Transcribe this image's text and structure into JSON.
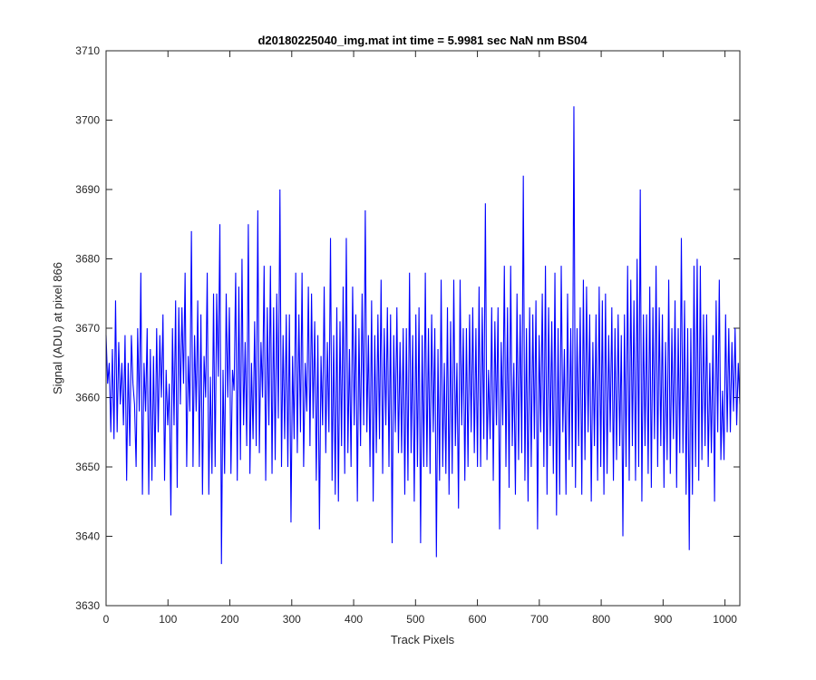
{
  "chart_data": {
    "type": "line",
    "title": "d20180225040_img.mat int time = 5.9981 sec  NaN nm BS04",
    "xlabel": "Track Pixels",
    "ylabel": "Signal (ADU) at pixel 866",
    "xlim": [
      0,
      1024
    ],
    "ylim": [
      3630,
      3710
    ],
    "xticks": [
      0,
      100,
      200,
      300,
      400,
      500,
      600,
      700,
      800,
      900,
      1000
    ],
    "yticks": [
      3630,
      3640,
      3650,
      3660,
      3670,
      3680,
      3690,
      3700,
      3710
    ],
    "grid": false,
    "legend": "none",
    "series_color": "#0000ff",
    "series": [
      {
        "values": [
          3669,
          3662,
          3665,
          3655,
          3667,
          3654,
          3674,
          3655,
          3668,
          3659,
          3665,
          3656,
          3669,
          3648,
          3665,
          3653,
          3669,
          3662,
          3659,
          3650,
          3670,
          3658,
          3678,
          3646,
          3665,
          3658,
          3670,
          3646,
          3667,
          3648,
          3666,
          3650,
          3670,
          3655,
          3669,
          3660,
          3672,
          3648,
          3664,
          3656,
          3662,
          3643,
          3670,
          3656,
          3674,
          3647,
          3673,
          3659,
          3673,
          3662,
          3678,
          3650,
          3666,
          3658,
          3684,
          3650,
          3669,
          3658,
          3674,
          3650,
          3672,
          3646,
          3666,
          3660,
          3678,
          3646,
          3663,
          3649,
          3675,
          3650,
          3675,
          3663,
          3685,
          3636,
          3664,
          3649,
          3675,
          3660,
          3673,
          3649,
          3664,
          3661,
          3678,
          3648,
          3676,
          3651,
          3680,
          3656,
          3668,
          3653,
          3685,
          3649,
          3665,
          3654,
          3671,
          3653,
          3687,
          3652,
          3668,
          3660,
          3679,
          3648,
          3673,
          3656,
          3679,
          3649,
          3673,
          3651,
          3675,
          3657,
          3690,
          3650,
          3669,
          3654,
          3672,
          3650,
          3672,
          3642,
          3666,
          3654,
          3678,
          3652,
          3672,
          3655,
          3678,
          3650,
          3665,
          3658,
          3676,
          3653,
          3675,
          3657,
          3671,
          3648,
          3669,
          3641,
          3666,
          3656,
          3676,
          3652,
          3668,
          3655,
          3683,
          3648,
          3669,
          3646,
          3673,
          3645,
          3671,
          3653,
          3676,
          3649,
          3683,
          3652,
          3667,
          3650,
          3676,
          3656,
          3672,
          3645,
          3670,
          3653,
          3675,
          3656,
          3687,
          3655,
          3669,
          3650,
          3674,
          3645,
          3669,
          3652,
          3672,
          3654,
          3677,
          3649,
          3670,
          3656,
          3673,
          3650,
          3672,
          3639,
          3669,
          3655,
          3673,
          3652,
          3668,
          3652,
          3670,
          3646,
          3670,
          3648,
          3678,
          3652,
          3669,
          3645,
          3672,
          3650,
          3673,
          3639,
          3669,
          3650,
          3678,
          3650,
          3670,
          3649,
          3672,
          3655,
          3670,
          3637,
          3667,
          3648,
          3677,
          3650,
          3665,
          3649,
          3673,
          3646,
          3671,
          3649,
          3677,
          3653,
          3665,
          3644,
          3677,
          3656,
          3670,
          3648,
          3670,
          3650,
          3672,
          3655,
          3673,
          3652,
          3670,
          3650,
          3676,
          3650,
          3673,
          3654,
          3688,
          3651,
          3664,
          3654,
          3673,
          3648,
          3671,
          3656,
          3673,
          3641,
          3668,
          3656,
          3679,
          3650,
          3673,
          3647,
          3679,
          3653,
          3665,
          3646,
          3675,
          3651,
          3672,
          3652,
          3692,
          3648,
          3670,
          3645,
          3673,
          3650,
          3672,
          3654,
          3674,
          3641,
          3669,
          3655,
          3675,
          3650,
          3679,
          3646,
          3673,
          3653,
          3671,
          3649,
          3678,
          3643,
          3670,
          3646,
          3679,
          3655,
          3667,
          3646,
          3675,
          3651,
          3670,
          3650,
          3702,
          3647,
          3670,
          3653,
          3673,
          3646,
          3677,
          3651,
          3676,
          3655,
          3672,
          3645,
          3668,
          3653,
          3672,
          3648,
          3676,
          3650,
          3674,
          3646,
          3675,
          3649,
          3669,
          3655,
          3673,
          3648,
          3670,
          3651,
          3672,
          3653,
          3669,
          3640,
          3672,
          3650,
          3679,
          3648,
          3677,
          3653,
          3674,
          3648,
          3680,
          3650,
          3690,
          3645,
          3672,
          3653,
          3672,
          3649,
          3676,
          3647,
          3673,
          3654,
          3679,
          3650,
          3673,
          3653,
          3672,
          3647,
          3668,
          3651,
          3677,
          3649,
          3670,
          3654,
          3674,
          3647,
          3670,
          3652,
          3683,
          3652,
          3674,
          3646,
          3670,
          3638,
          3670,
          3646,
          3679,
          3650,
          3680,
          3648,
          3679,
          3651,
          3672,
          3653,
          3672,
          3650,
          3665,
          3652,
          3669,
          3645,
          3674,
          3655,
          3677,
          3651,
          3661,
          3651,
          3672,
          3655,
          3670,
          3655,
          3668,
          3658,
          3670,
          3656,
          3665,
          3659
        ]
      }
    ]
  }
}
